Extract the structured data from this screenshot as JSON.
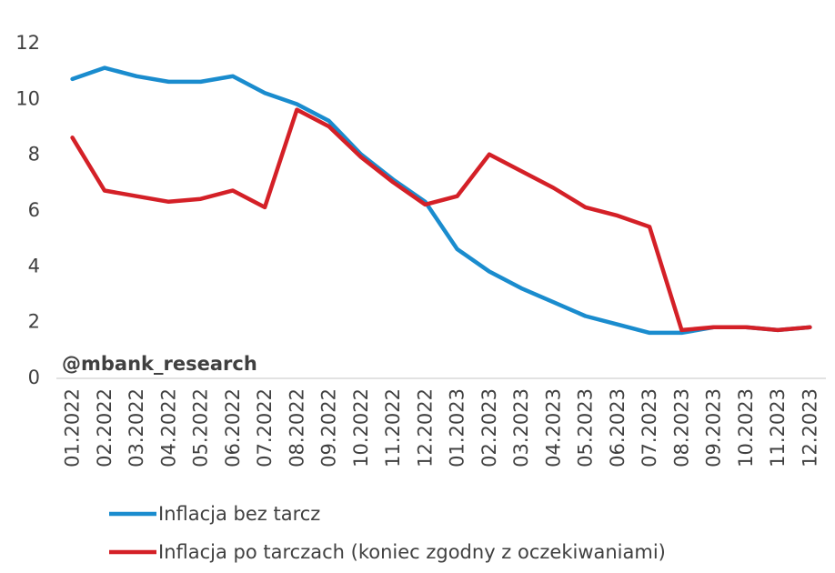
{
  "chart_data": {
    "type": "line",
    "title": "",
    "xlabel": "",
    "ylabel": "",
    "ylim": [
      0,
      12
    ],
    "yticks": [
      0,
      2,
      4,
      6,
      8,
      10,
      12
    ],
    "grid": false,
    "legend_position": "bottom",
    "watermark": "@mbank_research",
    "categories": [
      "01.2022",
      "02.2022",
      "03.2022",
      "04.2022",
      "05.2022",
      "06.2022",
      "07.2022",
      "08.2022",
      "09.2022",
      "10.2022",
      "11.2022",
      "12.2022",
      "01.2023",
      "02.2023",
      "03.2023",
      "04.2023",
      "05.2023",
      "06.2023",
      "07.2023",
      "08.2023",
      "09.2023",
      "10.2023",
      "11.2023",
      "12.2023"
    ],
    "series": [
      {
        "name": "Inflacja bez tarcz",
        "color": "#1a8cce",
        "values": [
          10.7,
          11.1,
          10.8,
          10.6,
          10.6,
          10.8,
          10.2,
          9.8,
          9.2,
          8.0,
          7.1,
          6.3,
          4.6,
          3.8,
          3.2,
          2.7,
          2.2,
          1.9,
          1.6,
          1.6,
          1.8,
          1.8,
          1.7,
          1.8
        ]
      },
      {
        "name": "Inflacja po tarczach (koniec zgodny z oczekiwaniami)",
        "color": "#d42027",
        "values": [
          8.6,
          6.7,
          6.5,
          6.3,
          6.4,
          6.7,
          6.1,
          9.6,
          9.0,
          7.9,
          7.0,
          6.2,
          6.5,
          8.0,
          7.4,
          6.8,
          6.1,
          5.8,
          5.4,
          1.7,
          1.8,
          1.8,
          1.7,
          1.8
        ]
      }
    ]
  }
}
